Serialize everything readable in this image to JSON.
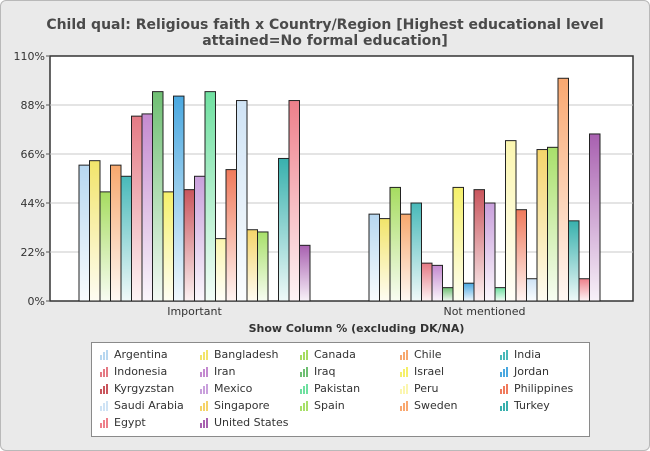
{
  "title_line1": "Child qual: Religious faith x Country/Region [Highest educational level",
  "title_line2": "attained=No formal education]",
  "chart_data": {
    "type": "bar",
    "title": "Child qual: Religious faith x Country/Region [Highest educational level attained=No formal education]",
    "xlabel": "Show Column % (excluding DK/NA)",
    "ylabel": "",
    "ylim": [
      0,
      110
    ],
    "yticks": [
      "0%",
      "22%",
      "44%",
      "66%",
      "88%",
      "110%"
    ],
    "grid": true,
    "legend_position": "bottom",
    "categories": [
      "Important",
      "Not mentioned"
    ],
    "series": [
      {
        "name": "Argentina",
        "color": "#b7d7f0",
        "values": [
          61,
          39
        ]
      },
      {
        "name": "Bangladesh",
        "color": "#f2e46a",
        "values": [
          63,
          37
        ]
      },
      {
        "name": "Canada",
        "color": "#a6dc60",
        "values": [
          49,
          51
        ]
      },
      {
        "name": "Chile",
        "color": "#f7a86e",
        "values": [
          61,
          39
        ]
      },
      {
        "name": "India",
        "color": "#48b9b9",
        "values": [
          56,
          44
        ]
      },
      {
        "name": "Indonesia",
        "color": "#e47a84",
        "values": [
          83,
          17
        ]
      },
      {
        "name": "Iran",
        "color": "#c48ad0",
        "values": [
          84,
          16
        ]
      },
      {
        "name": "Iraq",
        "color": "#6fbf73",
        "values": [
          94,
          6
        ]
      },
      {
        "name": "Israel",
        "color": "#f5f06a",
        "values": [
          49,
          51
        ]
      },
      {
        "name": "Jordan",
        "color": "#4aa8e0",
        "values": [
          92,
          8
        ]
      },
      {
        "name": "Kyrgyzstan",
        "color": "#c9555c",
        "values": [
          50,
          50
        ]
      },
      {
        "name": "Mexico",
        "color": "#c9a0dc",
        "values": [
          56,
          44
        ]
      },
      {
        "name": "Pakistan",
        "color": "#6fe0a0",
        "values": [
          94,
          6
        ]
      },
      {
        "name": "Peru",
        "color": "#fbf6b0",
        "values": [
          28,
          72
        ]
      },
      {
        "name": "Philippines",
        "color": "#f07a5c",
        "values": [
          59,
          41
        ]
      },
      {
        "name": "Saudi Arabia",
        "color": "#cfe3f5",
        "values": [
          90,
          10
        ]
      },
      {
        "name": "Singapore",
        "color": "#f5d46a",
        "values": [
          32,
          68
        ]
      },
      {
        "name": "Spain",
        "color": "#a8e06a",
        "values": [
          31,
          69
        ]
      },
      {
        "name": "Sweden",
        "color": "#f9a870",
        "values": [
          0,
          100
        ]
      },
      {
        "name": "Turkey",
        "color": "#38b0ad",
        "values": [
          64,
          36
        ]
      },
      {
        "name": "Egypt",
        "color": "#ee7f8a",
        "values": [
          90,
          10
        ]
      },
      {
        "name": "United States",
        "color": "#a860b0",
        "values": [
          25,
          75
        ]
      }
    ]
  }
}
